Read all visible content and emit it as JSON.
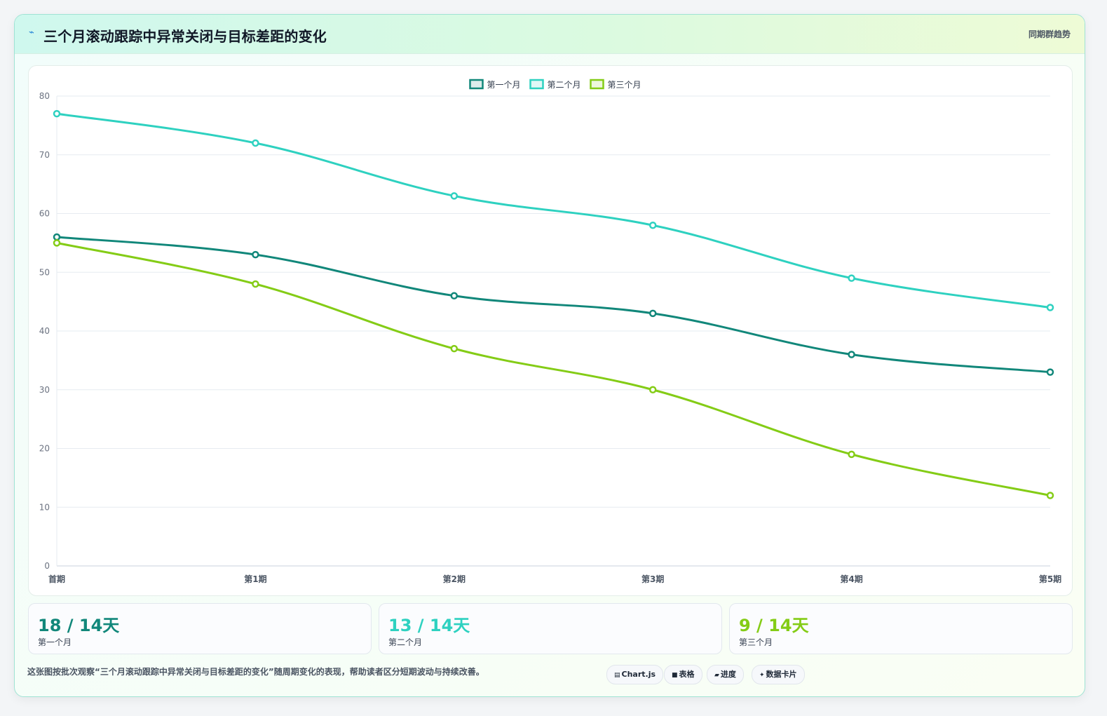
{
  "header": {
    "icon": "chart-icon",
    "title": "三个月滚动跟踪中异常关闭与目标差距的变化",
    "tag": "同期群趋势"
  },
  "chart_data": {
    "type": "line",
    "title": "",
    "xlabel": "",
    "ylabel": "",
    "categories": [
      "首期",
      "第1期",
      "第2期",
      "第3期",
      "第4期",
      "第5期"
    ],
    "ylim": [
      0,
      80
    ],
    "yticks": [
      0,
      10,
      20,
      30,
      40,
      50,
      60,
      70,
      80
    ],
    "grid": true,
    "legend": "top-center",
    "series": [
      {
        "name": "第一个月",
        "color": "#11877a",
        "values": [
          56,
          53,
          46,
          43,
          36,
          33
        ]
      },
      {
        "name": "第二个月",
        "color": "#2ed1c0",
        "values": [
          77,
          72,
          63,
          58,
          49,
          44
        ]
      },
      {
        "name": "第三个月",
        "color": "#84cc16",
        "values": [
          55,
          48,
          37,
          30,
          19,
          12
        ]
      }
    ]
  },
  "stats": [
    {
      "value": "18 / 14天",
      "label": "第一个月",
      "color": "#11877a"
    },
    {
      "value": "13 / 14天",
      "label": "第二个月",
      "color": "#2ed1c0"
    },
    {
      "value": "9 / 14天",
      "label": "第三个月",
      "color": "#84cc16"
    }
  ],
  "footer": {
    "description": "这张图按批次观察“三个月滚动跟踪中异常关闭与目标差距的变化”随周期变化的表现，帮助读者区分短期波动与持续改善。",
    "chips": [
      {
        "icon": "chart-icon",
        "glyph": "▤",
        "label": "Chart.js"
      },
      {
        "icon": "table-icon",
        "glyph": "■",
        "label": "表格"
      },
      {
        "icon": "progress-icon",
        "glyph": "▰",
        "label": "进度"
      },
      {
        "icon": "sparkle-icon",
        "glyph": "✦",
        "label": "数据卡片"
      }
    ]
  }
}
